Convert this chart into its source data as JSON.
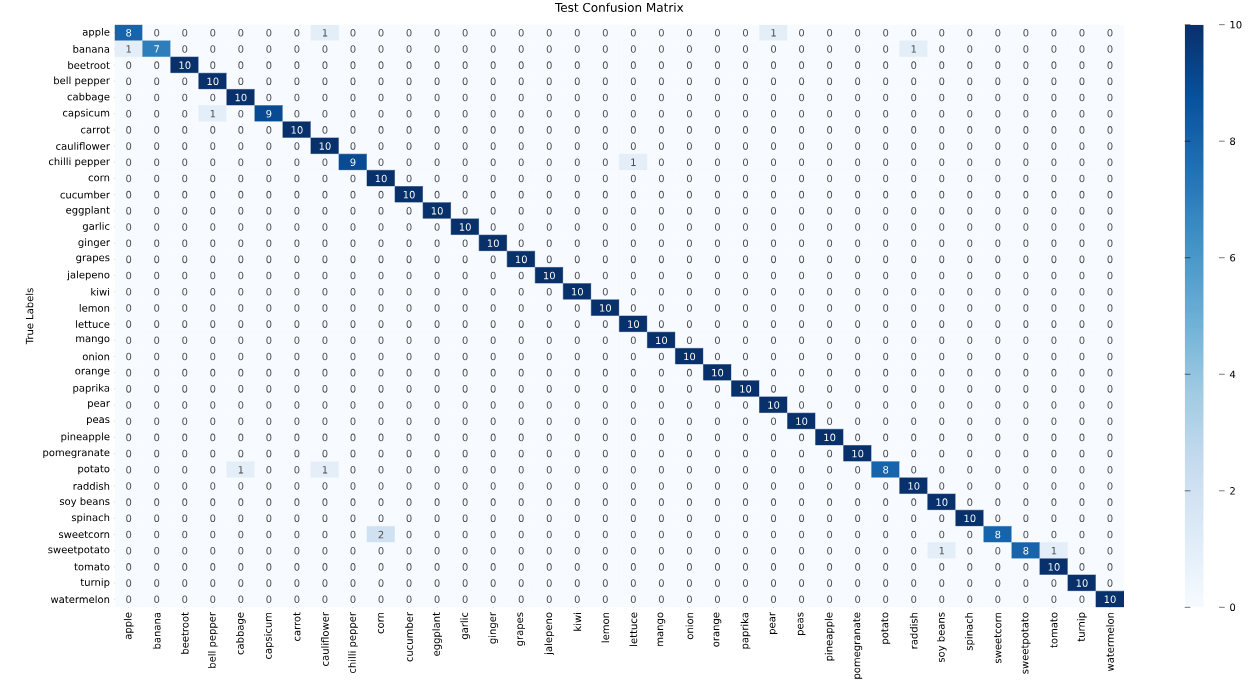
{
  "chart_data": {
    "type": "heatmap",
    "title": "Test Confusion Matrix",
    "ylabel": "True Labels",
    "categories": [
      "apple",
      "banana",
      "beetroot",
      "bell pepper",
      "cabbage",
      "capsicum",
      "carrot",
      "cauliflower",
      "chilli pepper",
      "corn",
      "cucumber",
      "eggplant",
      "garlic",
      "ginger",
      "grapes",
      "jalepeno",
      "kiwi",
      "lemon",
      "lettuce",
      "mango",
      "onion",
      "orange",
      "paprika",
      "pear",
      "peas",
      "pineapple",
      "pomegranate",
      "potato",
      "raddish",
      "soy beans",
      "spinach",
      "sweetcorn",
      "sweetpotato",
      "tomato",
      "turnip",
      "watermelon"
    ],
    "y_categories": [
      "apple",
      "banana",
      "beetroot",
      "bell pepper",
      "cabbage",
      "capsicum",
      "carrot",
      "cauliflower",
      "chilli pepper",
      "corn",
      "cucumber",
      "eggplant",
      "garlic",
      "ginger",
      "grapes",
      "jalepeno",
      "kiwi",
      "lemon",
      "lettuce",
      "mango",
      "onion",
      "orange",
      "paprika",
      "pear",
      "peas",
      "pineapple",
      "pomegranate",
      "potato",
      "raddish",
      "soy beans",
      "spinach",
      "sweetcorn",
      "sweetpotato",
      "tomato",
      "turnip",
      "watermelon"
    ],
    "cells": [
      [
        8,
        0,
        0,
        0,
        0,
        0,
        0,
        1,
        0,
        0,
        0,
        0,
        0,
        0,
        0,
        0,
        0,
        0,
        0,
        0,
        0,
        0,
        0,
        1,
        0,
        0,
        0,
        0,
        0,
        0,
        0,
        0,
        0,
        0,
        0,
        0
      ],
      [
        1,
        7,
        0,
        0,
        0,
        0,
        0,
        0,
        0,
        0,
        0,
        0,
        0,
        0,
        0,
        0,
        0,
        0,
        0,
        0,
        0,
        0,
        0,
        0,
        0,
        0,
        0,
        0,
        1,
        0,
        0,
        0,
        0,
        0,
        0,
        0
      ],
      [
        0,
        0,
        10,
        0,
        0,
        0,
        0,
        0,
        0,
        0,
        0,
        0,
        0,
        0,
        0,
        0,
        0,
        0,
        0,
        0,
        0,
        0,
        0,
        0,
        0,
        0,
        0,
        0,
        0,
        0,
        0,
        0,
        0,
        0,
        0,
        0
      ],
      [
        0,
        0,
        0,
        10,
        0,
        0,
        0,
        0,
        0,
        0,
        0,
        0,
        0,
        0,
        0,
        0,
        0,
        0,
        0,
        0,
        0,
        0,
        0,
        0,
        0,
        0,
        0,
        0,
        0,
        0,
        0,
        0,
        0,
        0,
        0,
        0
      ],
      [
        0,
        0,
        0,
        0,
        10,
        0,
        0,
        0,
        0,
        0,
        0,
        0,
        0,
        0,
        0,
        0,
        0,
        0,
        0,
        0,
        0,
        0,
        0,
        0,
        0,
        0,
        0,
        0,
        0,
        0,
        0,
        0,
        0,
        0,
        0,
        0
      ],
      [
        0,
        0,
        0,
        1,
        0,
        9,
        0,
        0,
        0,
        0,
        0,
        0,
        0,
        0,
        0,
        0,
        0,
        0,
        0,
        0,
        0,
        0,
        0,
        0,
        0,
        0,
        0,
        0,
        0,
        0,
        0,
        0,
        0,
        0,
        0,
        0
      ],
      [
        0,
        0,
        0,
        0,
        0,
        0,
        10,
        0,
        0,
        0,
        0,
        0,
        0,
        0,
        0,
        0,
        0,
        0,
        0,
        0,
        0,
        0,
        0,
        0,
        0,
        0,
        0,
        0,
        0,
        0,
        0,
        0,
        0,
        0,
        0,
        0
      ],
      [
        0,
        0,
        0,
        0,
        0,
        0,
        0,
        10,
        0,
        0,
        0,
        0,
        0,
        0,
        0,
        0,
        0,
        0,
        0,
        0,
        0,
        0,
        0,
        0,
        0,
        0,
        0,
        0,
        0,
        0,
        0,
        0,
        0,
        0,
        0,
        0
      ],
      [
        0,
        0,
        0,
        0,
        0,
        0,
        0,
        0,
        9,
        0,
        0,
        0,
        0,
        0,
        0,
        0,
        0,
        0,
        1,
        0,
        0,
        0,
        0,
        0,
        0,
        0,
        0,
        0,
        0,
        0,
        0,
        0,
        0,
        0,
        0,
        0
      ],
      [
        0,
        0,
        0,
        0,
        0,
        0,
        0,
        0,
        0,
        10,
        0,
        0,
        0,
        0,
        0,
        0,
        0,
        0,
        0,
        0,
        0,
        0,
        0,
        0,
        0,
        0,
        0,
        0,
        0,
        0,
        0,
        0,
        0,
        0,
        0,
        0
      ],
      [
        0,
        0,
        0,
        0,
        0,
        0,
        0,
        0,
        0,
        0,
        10,
        0,
        0,
        0,
        0,
        0,
        0,
        0,
        0,
        0,
        0,
        0,
        0,
        0,
        0,
        0,
        0,
        0,
        0,
        0,
        0,
        0,
        0,
        0,
        0,
        0
      ],
      [
        0,
        0,
        0,
        0,
        0,
        0,
        0,
        0,
        0,
        0,
        0,
        10,
        0,
        0,
        0,
        0,
        0,
        0,
        0,
        0,
        0,
        0,
        0,
        0,
        0,
        0,
        0,
        0,
        0,
        0,
        0,
        0,
        0,
        0,
        0,
        0
      ],
      [
        0,
        0,
        0,
        0,
        0,
        0,
        0,
        0,
        0,
        0,
        0,
        0,
        10,
        0,
        0,
        0,
        0,
        0,
        0,
        0,
        0,
        0,
        0,
        0,
        0,
        0,
        0,
        0,
        0,
        0,
        0,
        0,
        0,
        0,
        0,
        0
      ],
      [
        0,
        0,
        0,
        0,
        0,
        0,
        0,
        0,
        0,
        0,
        0,
        0,
        0,
        10,
        0,
        0,
        0,
        0,
        0,
        0,
        0,
        0,
        0,
        0,
        0,
        0,
        0,
        0,
        0,
        0,
        0,
        0,
        0,
        0,
        0,
        0
      ],
      [
        0,
        0,
        0,
        0,
        0,
        0,
        0,
        0,
        0,
        0,
        0,
        0,
        0,
        0,
        10,
        0,
        0,
        0,
        0,
        0,
        0,
        0,
        0,
        0,
        0,
        0,
        0,
        0,
        0,
        0,
        0,
        0,
        0,
        0,
        0,
        0
      ],
      [
        0,
        0,
        0,
        0,
        0,
        0,
        0,
        0,
        0,
        0,
        0,
        0,
        0,
        0,
        0,
        10,
        0,
        0,
        0,
        0,
        0,
        0,
        0,
        0,
        0,
        0,
        0,
        0,
        0,
        0,
        0,
        0,
        0,
        0,
        0,
        0
      ],
      [
        0,
        0,
        0,
        0,
        0,
        0,
        0,
        0,
        0,
        0,
        0,
        0,
        0,
        0,
        0,
        0,
        10,
        0,
        0,
        0,
        0,
        0,
        0,
        0,
        0,
        0,
        0,
        0,
        0,
        0,
        0,
        0,
        0,
        0,
        0,
        0
      ],
      [
        0,
        0,
        0,
        0,
        0,
        0,
        0,
        0,
        0,
        0,
        0,
        0,
        0,
        0,
        0,
        0,
        0,
        10,
        0,
        0,
        0,
        0,
        0,
        0,
        0,
        0,
        0,
        0,
        0,
        0,
        0,
        0,
        0,
        0,
        0,
        0
      ],
      [
        0,
        0,
        0,
        0,
        0,
        0,
        0,
        0,
        0,
        0,
        0,
        0,
        0,
        0,
        0,
        0,
        0,
        0,
        10,
        0,
        0,
        0,
        0,
        0,
        0,
        0,
        0,
        0,
        0,
        0,
        0,
        0,
        0,
        0,
        0,
        0
      ],
      [
        0,
        0,
        0,
        0,
        0,
        0,
        0,
        0,
        0,
        0,
        0,
        0,
        0,
        0,
        0,
        0,
        0,
        0,
        0,
        10,
        0,
        0,
        0,
        0,
        0,
        0,
        0,
        0,
        0,
        0,
        0,
        0,
        0,
        0,
        0,
        0
      ],
      [
        0,
        0,
        0,
        0,
        0,
        0,
        0,
        0,
        0,
        0,
        0,
        0,
        0,
        0,
        0,
        0,
        0,
        0,
        0,
        0,
        10,
        0,
        0,
        0,
        0,
        0,
        0,
        0,
        0,
        0,
        0,
        0,
        0,
        0,
        0,
        0
      ],
      [
        0,
        0,
        0,
        0,
        0,
        0,
        0,
        0,
        0,
        0,
        0,
        0,
        0,
        0,
        0,
        0,
        0,
        0,
        0,
        0,
        0,
        10,
        0,
        0,
        0,
        0,
        0,
        0,
        0,
        0,
        0,
        0,
        0,
        0,
        0,
        0
      ],
      [
        0,
        0,
        0,
        0,
        0,
        0,
        0,
        0,
        0,
        0,
        0,
        0,
        0,
        0,
        0,
        0,
        0,
        0,
        0,
        0,
        0,
        0,
        10,
        0,
        0,
        0,
        0,
        0,
        0,
        0,
        0,
        0,
        0,
        0,
        0,
        0
      ],
      [
        0,
        0,
        0,
        0,
        0,
        0,
        0,
        0,
        0,
        0,
        0,
        0,
        0,
        0,
        0,
        0,
        0,
        0,
        0,
        0,
        0,
        0,
        0,
        10,
        0,
        0,
        0,
        0,
        0,
        0,
        0,
        0,
        0,
        0,
        0,
        0
      ],
      [
        0,
        0,
        0,
        0,
        0,
        0,
        0,
        0,
        0,
        0,
        0,
        0,
        0,
        0,
        0,
        0,
        0,
        0,
        0,
        0,
        0,
        0,
        0,
        0,
        10,
        0,
        0,
        0,
        0,
        0,
        0,
        0,
        0,
        0,
        0,
        0
      ],
      [
        0,
        0,
        0,
        0,
        0,
        0,
        0,
        0,
        0,
        0,
        0,
        0,
        0,
        0,
        0,
        0,
        0,
        0,
        0,
        0,
        0,
        0,
        0,
        0,
        0,
        10,
        0,
        0,
        0,
        0,
        0,
        0,
        0,
        0,
        0,
        0
      ],
      [
        0,
        0,
        0,
        0,
        0,
        0,
        0,
        0,
        0,
        0,
        0,
        0,
        0,
        0,
        0,
        0,
        0,
        0,
        0,
        0,
        0,
        0,
        0,
        0,
        0,
        0,
        10,
        0,
        0,
        0,
        0,
        0,
        0,
        0,
        0,
        0
      ],
      [
        0,
        0,
        0,
        0,
        1,
        0,
        0,
        1,
        0,
        0,
        0,
        0,
        0,
        0,
        0,
        0,
        0,
        0,
        0,
        0,
        0,
        0,
        0,
        0,
        0,
        0,
        0,
        8,
        0,
        0,
        0,
        0,
        0,
        0,
        0,
        0
      ],
      [
        0,
        0,
        0,
        0,
        0,
        0,
        0,
        0,
        0,
        0,
        0,
        0,
        0,
        0,
        0,
        0,
        0,
        0,
        0,
        0,
        0,
        0,
        0,
        0,
        0,
        0,
        0,
        0,
        10,
        0,
        0,
        0,
        0,
        0,
        0,
        0
      ],
      [
        0,
        0,
        0,
        0,
        0,
        0,
        0,
        0,
        0,
        0,
        0,
        0,
        0,
        0,
        0,
        0,
        0,
        0,
        0,
        0,
        0,
        0,
        0,
        0,
        0,
        0,
        0,
        0,
        0,
        10,
        0,
        0,
        0,
        0,
        0,
        0
      ],
      [
        0,
        0,
        0,
        0,
        0,
        0,
        0,
        0,
        0,
        0,
        0,
        0,
        0,
        0,
        0,
        0,
        0,
        0,
        0,
        0,
        0,
        0,
        0,
        0,
        0,
        0,
        0,
        0,
        0,
        0,
        10,
        0,
        0,
        0,
        0,
        0
      ],
      [
        0,
        0,
        0,
        0,
        0,
        0,
        0,
        0,
        0,
        2,
        0,
        0,
        0,
        0,
        0,
        0,
        0,
        0,
        0,
        0,
        0,
        0,
        0,
        0,
        0,
        0,
        0,
        0,
        0,
        0,
        0,
        8,
        0,
        0,
        0,
        0
      ],
      [
        0,
        0,
        0,
        0,
        0,
        0,
        0,
        0,
        0,
        0,
        0,
        0,
        0,
        0,
        0,
        0,
        0,
        0,
        0,
        0,
        0,
        0,
        0,
        0,
        0,
        0,
        0,
        0,
        0,
        1,
        0,
        0,
        8,
        1,
        0,
        0
      ],
      [
        0,
        0,
        0,
        0,
        0,
        0,
        0,
        0,
        0,
        0,
        0,
        0,
        0,
        0,
        0,
        0,
        0,
        0,
        0,
        0,
        0,
        0,
        0,
        0,
        0,
        0,
        0,
        0,
        0,
        0,
        0,
        0,
        0,
        10,
        0,
        0
      ],
      [
        0,
        0,
        0,
        0,
        0,
        0,
        0,
        0,
        0,
        0,
        0,
        0,
        0,
        0,
        0,
        0,
        0,
        0,
        0,
        0,
        0,
        0,
        0,
        0,
        0,
        0,
        0,
        0,
        0,
        0,
        0,
        0,
        0,
        0,
        10,
        0
      ],
      [
        0,
        0,
        0,
        0,
        0,
        0,
        0,
        0,
        0,
        0,
        0,
        0,
        0,
        0,
        0,
        0,
        0,
        0,
        0,
        0,
        0,
        0,
        0,
        0,
        0,
        0,
        0,
        0,
        0,
        0,
        0,
        0,
        0,
        0,
        0,
        10
      ]
    ],
    "clim": [
      0,
      10
    ],
    "cticks": [
      0,
      2,
      4,
      6,
      8,
      10
    ],
    "data_labels": true
  }
}
